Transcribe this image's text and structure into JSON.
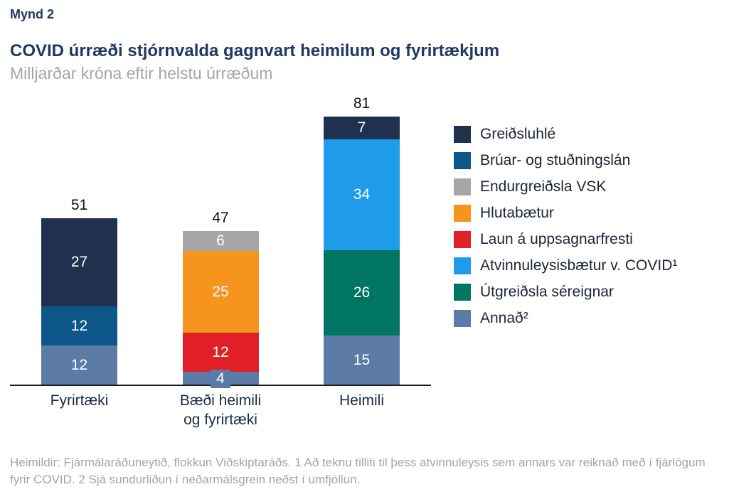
{
  "header": {
    "figure_label": "Mynd 2",
    "title": "COVID úrræði stjórnvalda gagnvart heimilum og fyrirtækjum",
    "subtitle": "Milljarðar króna eftir helstu úrræðum"
  },
  "chart_data": {
    "type": "bar",
    "variant": "stacked",
    "unit": "milljarðar króna",
    "grid": false,
    "legend_position": "right",
    "ylim": [
      0,
      81
    ],
    "legend": [
      {
        "label": "Greiðsluhlé",
        "color": "#20304f"
      },
      {
        "label": "Brúar- og stuðningslán",
        "color": "#0d5688"
      },
      {
        "label": "Endurgreiðsla VSK",
        "color": "#a6a6a6"
      },
      {
        "label": "Hlutabætur",
        "color": "#f7941e"
      },
      {
        "label": "Laun á uppsagnarfresti",
        "color": "#e01f26"
      },
      {
        "label": "Atvinnuleysisbætur v. COVID¹",
        "color": "#1f9ce9"
      },
      {
        "label": "Útgreiðsla séreignar",
        "color": "#007564"
      },
      {
        "label": "Annað²",
        "color": "#5c7ba7"
      }
    ],
    "categories": [
      "Fyrirtæki",
      "Bæði heimili og fyrirtæki",
      "Heimili"
    ],
    "bars": [
      {
        "category": "Fyrirtæki",
        "label_lines": [
          "Fyrirtæki"
        ],
        "total": 51,
        "segments_bottom_to_top": [
          {
            "legend_index": 7,
            "name": "Annað",
            "value": 12
          },
          {
            "legend_index": 1,
            "name": "Brúar- og stuðningslán",
            "value": 12
          },
          {
            "legend_index": 0,
            "name": "Greiðsluhlé",
            "value": 27
          }
        ]
      },
      {
        "category": "Bæði heimili og fyrirtæki",
        "label_lines": [
          "Bæði heimili",
          "og fyrirtæki"
        ],
        "total": 47,
        "segments_bottom_to_top": [
          {
            "legend_index": 7,
            "name": "Annað",
            "value": 4
          },
          {
            "legend_index": 4,
            "name": "Laun á uppsagnarfresti",
            "value": 12
          },
          {
            "legend_index": 3,
            "name": "Hlutabætur",
            "value": 25
          },
          {
            "legend_index": 2,
            "name": "Endurgreiðsla VSK",
            "value": 6
          }
        ]
      },
      {
        "category": "Heimili",
        "label_lines": [
          "Heimili"
        ],
        "total": 81,
        "segments_bottom_to_top": [
          {
            "legend_index": 7,
            "name": "Annað",
            "value": 15
          },
          {
            "legend_index": 6,
            "name": "Útgreiðsla séreignar",
            "value": 26
          },
          {
            "legend_index": 5,
            "name": "Atvinnuleysisbætur v. COVID¹",
            "value": 34
          },
          {
            "legend_index": 0,
            "name": "Greiðsluhlé",
            "value": 7
          }
        ]
      }
    ]
  },
  "footer": {
    "source_note": "Heimildir: Fjármálaráðuneytið, flokkun Viðskiptaráðs. 1 Að teknu tilliti til þess atvinnuleysis sem annars var reiknað með í fjárlögum fyrir COVID. 2 Sjá  sundurliðun í neðarmálsgrein neðst í umfjöllun."
  }
}
